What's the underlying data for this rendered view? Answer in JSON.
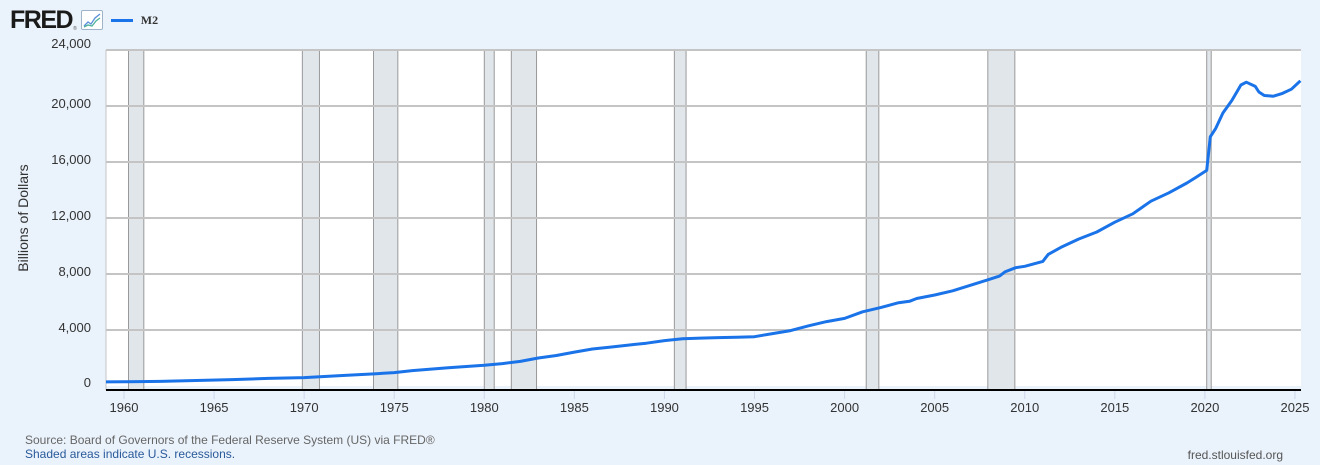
{
  "header": {
    "logo": "FRED",
    "logo_registered": "®",
    "legend": [
      {
        "label": "M2",
        "color": "#1a73e8"
      }
    ]
  },
  "footer": {
    "source": "Source: Board of Governors of the Federal Reserve System (US) via FRED®",
    "shaded_note": "Shaded areas indicate U.S. recessions.",
    "site": "fred.stlouisfed.org"
  },
  "colors": {
    "background": "#eaf2fb",
    "plot_bg": "#ffffff",
    "series": "#1a73e8",
    "recession": "#e1e6eb",
    "grid": "#c4c4c4"
  },
  "chart_data": {
    "type": "line",
    "title": "M2",
    "xlabel": "",
    "ylabel": "Billions of Dollars",
    "xlim": [
      1959.0,
      2025.3
    ],
    "ylim": [
      0,
      24000
    ],
    "y_ticks": [
      0,
      4000,
      8000,
      12000,
      16000,
      20000,
      24000
    ],
    "y_tick_labels": [
      "0",
      "4,000",
      "8,000",
      "12,000",
      "16,000",
      "20,000",
      "24,000"
    ],
    "x_ticks": [
      1960,
      1965,
      1970,
      1975,
      1980,
      1985,
      1990,
      1995,
      2000,
      2005,
      2010,
      2015,
      2020,
      2025
    ],
    "x_tick_labels": [
      "1960",
      "1965",
      "1970",
      "1975",
      "1980",
      "1985",
      "1990",
      "1995",
      "2000",
      "2005",
      "2010",
      "2015",
      "2020",
      "2025"
    ],
    "grid": true,
    "legend_position": "top-left",
    "recessions": [
      [
        1960.25,
        1961.1
      ],
      [
        1969.9,
        1970.85
      ],
      [
        1973.85,
        1975.2
      ],
      [
        1980.0,
        1980.55
      ],
      [
        1981.5,
        1982.9
      ],
      [
        1990.55,
        1991.2
      ],
      [
        2001.2,
        2001.9
      ],
      [
        2007.95,
        2009.45
      ],
      [
        2020.1,
        2020.35
      ]
    ],
    "series": [
      {
        "name": "M2",
        "x": [
          1959.0,
          1960,
          1962,
          1964,
          1966,
          1968,
          1970,
          1972,
          1974,
          1975,
          1976,
          1978,
          1980,
          1981,
          1982,
          1983,
          1984,
          1985,
          1986,
          1987,
          1988,
          1989,
          1990,
          1991,
          1992,
          1993,
          1994,
          1995,
          1996,
          1997,
          1998,
          1999,
          2000,
          2001,
          2002,
          2003,
          2003.6,
          2004,
          2005,
          2006,
          2007,
          2008,
          2008.6,
          2008.9,
          2009.5,
          2010,
          2011,
          2011.3,
          2012,
          2013,
          2014,
          2015,
          2016,
          2017,
          2018,
          2019,
          2019.5,
          2020.1,
          2020.3,
          2020.6,
          2021,
          2021.5,
          2022,
          2022.3,
          2022.8,
          2023.0,
          2023.3,
          2023.8,
          2024.3,
          2024.8,
          2025.3
        ],
        "values": [
          290,
          300,
          330,
          390,
          460,
          540,
          600,
          740,
          880,
          960,
          1100,
          1300,
          1480,
          1600,
          1760,
          2000,
          2180,
          2420,
          2640,
          2780,
          2920,
          3060,
          3240,
          3380,
          3420,
          3460,
          3480,
          3520,
          3740,
          3960,
          4300,
          4600,
          4830,
          5300,
          5600,
          5950,
          6050,
          6250,
          6500,
          6800,
          7200,
          7600,
          7850,
          8150,
          8450,
          8550,
          8900,
          9400,
          9900,
          10500,
          11000,
          11700,
          12300,
          13200,
          13800,
          14500,
          14900,
          15400,
          17800,
          18400,
          19500,
          20400,
          21500,
          21700,
          21400,
          21000,
          20750,
          20700,
          20900,
          21200,
          21800
        ]
      }
    ]
  }
}
